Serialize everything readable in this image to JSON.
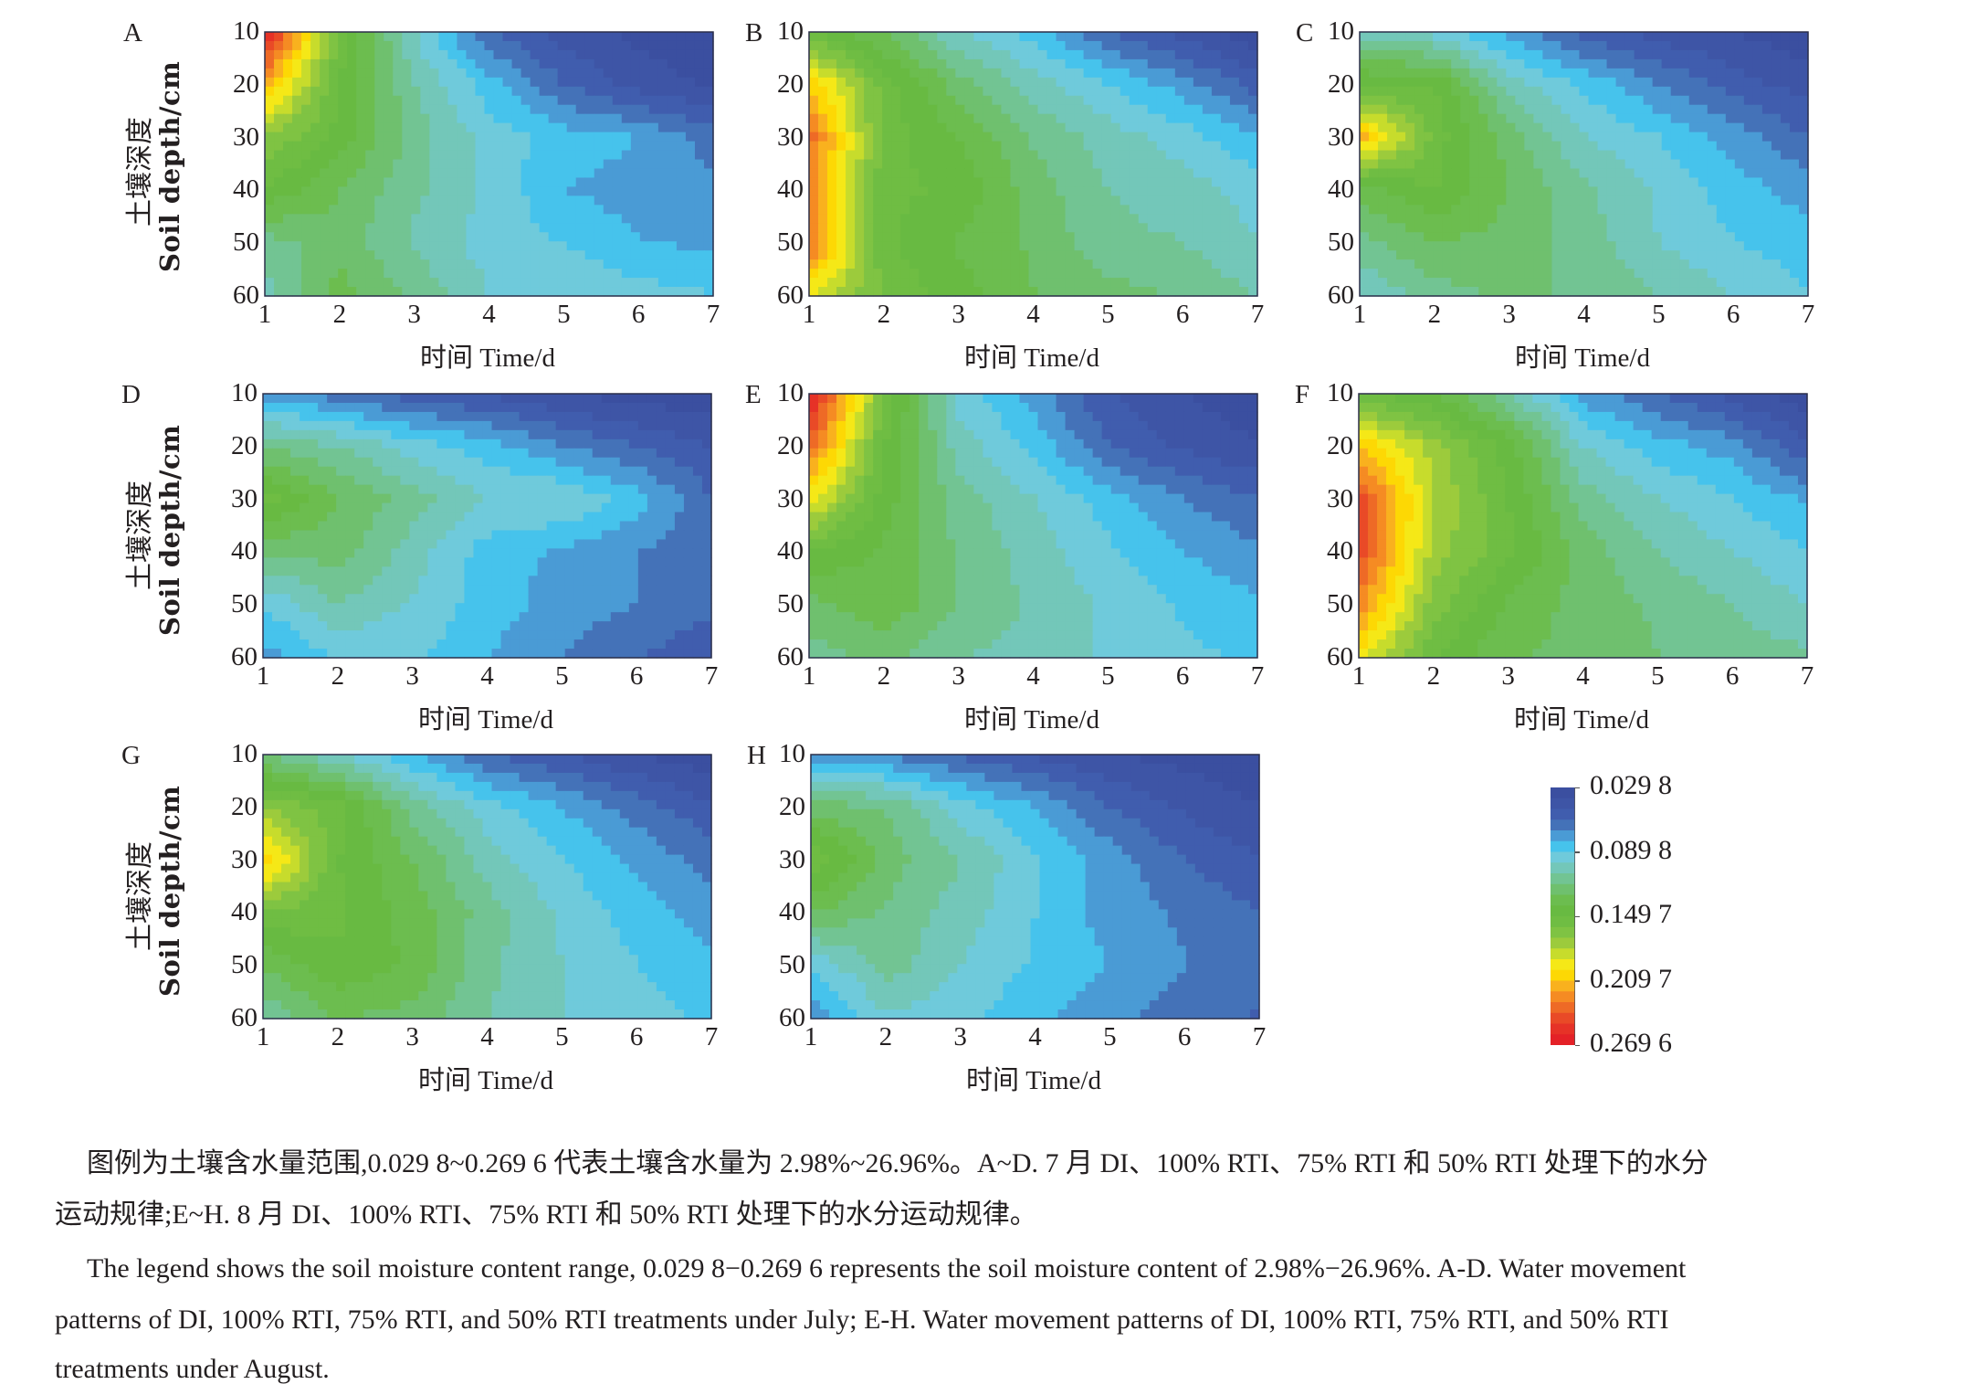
{
  "figure": {
    "y_axis_label_zh": "土壤深度",
    "y_axis_label_en": "Soil depth/cm",
    "x_axis_label": "时间 Time/d",
    "y_ticks": [
      "10",
      "20",
      "30",
      "40",
      "50",
      "60"
    ],
    "x_ticks": [
      "1",
      "2",
      "3",
      "4",
      "5",
      "6",
      "7"
    ]
  },
  "legend": {
    "ticks": [
      "0.029 8",
      "0.089 8",
      "0.149 7",
      "0.209 7",
      "0.269 6"
    ],
    "range": [
      0.0298,
      0.2696
    ],
    "band_colors": [
      "#3b4fa0",
      "#3e55a6",
      "#405dae",
      "#4472b8",
      "#4a9bd5",
      "#46c3ec",
      "#6fcadb",
      "#73c7b9",
      "#72c493",
      "#6fc06e",
      "#6cbd4f",
      "#68ba42",
      "#6fbd43",
      "#7fc343",
      "#9ccb3c",
      "#c7dc2c",
      "#f5e817",
      "#fdd804",
      "#f9b11e",
      "#f58b23",
      "#ee6a26",
      "#e94a27",
      "#e63227",
      "#e42127"
    ]
  },
  "caption": {
    "zh_line1": "图例为土壤含水量范围,0.029 8~0.269 6 代表土壤含水量为 2.98%~26.96%。A~D. 7 月 DI、100% RTI、75% RTI 和 50% RTI 处理下的水分",
    "zh_line2": "运动规律;E~H. 8 月 DI、100% RTI、75% RTI 和 50% RTI 处理下的水分运动规律。",
    "en_line1": "The legend shows the soil moisture content range, 0.029 8−0.269 6 represents the soil moisture content of 2.98%−26.96%. A-D. Water movement",
    "en_line2": "patterns of DI, 100% RTI, 75% RTI, and 50% RTI treatments under July; E-H. Water movement patterns of DI, 100% RTI, 75% RTI, and 50% RTI",
    "en_line3": "treatments under August."
  },
  "chart_data": [
    {
      "type": "heatmap",
      "label": "A",
      "xlabel": "时间 Time/d",
      "ylabel": "土壤深度 Soil depth/cm",
      "x": [
        1,
        2,
        3,
        4,
        5,
        6,
        7
      ],
      "y": [
        10,
        20,
        30,
        40,
        50,
        60
      ],
      "xlim": [
        1,
        7
      ],
      "ylim": [
        60,
        10
      ],
      "z": [
        [
          0.265,
          0.155,
          0.1,
          0.06,
          0.045,
          0.037,
          0.033
        ],
        [
          0.215,
          0.15,
          0.11,
          0.085,
          0.06,
          0.045,
          0.038
        ],
        [
          0.17,
          0.145,
          0.115,
          0.095,
          0.085,
          0.08,
          0.065
        ],
        [
          0.148,
          0.13,
          0.112,
          0.098,
          0.08,
          0.075,
          0.072
        ],
        [
          0.115,
          0.125,
          0.108,
          0.095,
          0.09,
          0.08,
          0.078
        ],
        [
          0.105,
          0.135,
          0.118,
          0.1,
          0.098,
          0.095,
          0.09
        ]
      ]
    },
    {
      "type": "heatmap",
      "label": "B",
      "xlabel": "时间 Time/d",
      "ylabel": "土壤深度 Soil depth/cm",
      "x": [
        1,
        2,
        3,
        4,
        5,
        6,
        7
      ],
      "y": [
        10,
        20,
        30,
        40,
        50,
        60
      ],
      "xlim": [
        1,
        7
      ],
      "ylim": [
        60,
        10
      ],
      "z": [
        [
          0.15,
          0.13,
          0.1,
          0.085,
          0.06,
          0.045,
          0.033
        ],
        [
          0.21,
          0.155,
          0.125,
          0.105,
          0.09,
          0.075,
          0.055
        ],
        [
          0.235,
          0.155,
          0.14,
          0.118,
          0.105,
          0.095,
          0.08
        ],
        [
          0.23,
          0.152,
          0.148,
          0.125,
          0.11,
          0.105,
          0.095
        ],
        [
          0.235,
          0.152,
          0.138,
          0.128,
          0.112,
          0.11,
          0.1
        ],
        [
          0.19,
          0.158,
          0.145,
          0.13,
          0.125,
          0.118,
          0.11
        ]
      ]
    },
    {
      "type": "heatmap",
      "label": "C",
      "xlabel": "时间 Time/d",
      "ylabel": "土壤深度 Soil depth/cm",
      "x": [
        1,
        2,
        3,
        4,
        5,
        6,
        7
      ],
      "y": [
        10,
        20,
        30,
        40,
        50,
        60
      ],
      "xlim": [
        1,
        7
      ],
      "ylim": [
        60,
        10
      ],
      "z": [
        [
          0.105,
          0.095,
          0.075,
          0.055,
          0.045,
          0.04,
          0.032
        ],
        [
          0.15,
          0.15,
          0.105,
          0.088,
          0.07,
          0.055,
          0.045
        ],
        [
          0.215,
          0.155,
          0.125,
          0.1,
          0.09,
          0.075,
          0.06
        ],
        [
          0.135,
          0.15,
          0.13,
          0.112,
          0.098,
          0.085,
          0.075
        ],
        [
          0.115,
          0.13,
          0.125,
          0.115,
          0.1,
          0.09,
          0.085
        ],
        [
          0.1,
          0.115,
          0.122,
          0.118,
          0.11,
          0.1,
          0.09
        ]
      ]
    },
    {
      "type": "heatmap",
      "label": "D",
      "xlabel": "时间 Time/d",
      "ylabel": "土壤深度 Soil depth/cm",
      "x": [
        1,
        2,
        3,
        4,
        5,
        6,
        7
      ],
      "y": [
        10,
        20,
        30,
        40,
        50,
        60
      ],
      "xlim": [
        1,
        7
      ],
      "ylim": [
        60,
        10
      ],
      "z": [
        [
          0.075,
          0.065,
          0.055,
          0.048,
          0.04,
          0.035,
          0.032
        ],
        [
          0.12,
          0.11,
          0.095,
          0.085,
          0.07,
          0.06,
          0.05
        ],
        [
          0.155,
          0.13,
          0.115,
          0.1,
          0.1,
          0.085,
          0.06
        ],
        [
          0.12,
          0.125,
          0.105,
          0.085,
          0.078,
          0.07,
          0.065
        ],
        [
          0.09,
          0.11,
          0.098,
          0.085,
          0.075,
          0.07,
          0.062
        ],
        [
          0.075,
          0.09,
          0.092,
          0.08,
          0.07,
          0.06,
          0.052
        ]
      ]
    },
    {
      "type": "heatmap",
      "label": "E",
      "xlabel": "时间 Time/d",
      "ylabel": "土壤深度 Soil depth/cm",
      "x": [
        1,
        2,
        3,
        4,
        5,
        6,
        7
      ],
      "y": [
        10,
        20,
        30,
        40,
        50,
        60
      ],
      "xlim": [
        1,
        7
      ],
      "ylim": [
        60,
        10
      ],
      "z": [
        [
          0.265,
          0.16,
          0.095,
          0.075,
          0.05,
          0.04,
          0.033
        ],
        [
          0.235,
          0.15,
          0.105,
          0.088,
          0.06,
          0.048,
          0.04
        ],
        [
          0.195,
          0.145,
          0.115,
          0.1,
          0.085,
          0.07,
          0.06
        ],
        [
          0.15,
          0.138,
          0.118,
          0.105,
          0.092,
          0.08,
          0.072
        ],
        [
          0.125,
          0.138,
          0.12,
          0.108,
          0.098,
          0.088,
          0.082
        ],
        [
          0.115,
          0.122,
          0.11,
          0.105,
          0.098,
          0.092,
          0.088
        ]
      ]
    },
    {
      "type": "heatmap",
      "label": "F",
      "xlabel": "时间 Time/d",
      "ylabel": "土壤深度 Soil depth/cm",
      "x": [
        1,
        2,
        3,
        4,
        5,
        6,
        7
      ],
      "y": [
        10,
        20,
        30,
        40,
        50,
        60
      ],
      "xlim": [
        1,
        7
      ],
      "ylim": [
        60,
        10
      ],
      "z": [
        [
          0.15,
          0.14,
          0.11,
          0.075,
          0.06,
          0.045,
          0.033
        ],
        [
          0.21,
          0.175,
          0.145,
          0.1,
          0.085,
          0.075,
          0.052
        ],
        [
          0.245,
          0.18,
          0.15,
          0.115,
          0.1,
          0.09,
          0.078
        ],
        [
          0.245,
          0.175,
          0.152,
          0.125,
          0.11,
          0.1,
          0.09
        ],
        [
          0.225,
          0.165,
          0.138,
          0.125,
          0.118,
          0.11,
          0.1
        ],
        [
          0.195,
          0.15,
          0.13,
          0.128,
          0.12,
          0.115,
          0.112
        ]
      ]
    },
    {
      "type": "heatmap",
      "label": "G",
      "xlabel": "时间 Time/d",
      "ylabel": "土壤深度 Soil depth/cm",
      "x": [
        1,
        2,
        3,
        4,
        5,
        6,
        7
      ],
      "y": [
        10,
        20,
        30,
        40,
        50,
        60
      ],
      "xlim": [
        1,
        7
      ],
      "ylim": [
        60,
        10
      ],
      "z": [
        [
          0.12,
          0.1,
          0.08,
          0.06,
          0.05,
          0.04,
          0.032
        ],
        [
          0.17,
          0.155,
          0.115,
          0.095,
          0.08,
          0.065,
          0.052
        ],
        [
          0.21,
          0.15,
          0.13,
          0.105,
          0.09,
          0.078,
          0.065
        ],
        [
          0.16,
          0.152,
          0.135,
          0.115,
          0.098,
          0.085,
          0.075
        ],
        [
          0.13,
          0.148,
          0.138,
          0.112,
          0.1,
          0.09,
          0.082
        ],
        [
          0.11,
          0.13,
          0.125,
          0.11,
          0.1,
          0.095,
          0.088
        ]
      ]
    },
    {
      "type": "heatmap",
      "label": "H",
      "xlabel": "时间 Time/d",
      "ylabel": "土壤深度 Soil depth/cm",
      "x": [
        1,
        2,
        3,
        4,
        5,
        6,
        7
      ],
      "y": [
        10,
        20,
        30,
        40,
        50,
        60
      ],
      "xlim": [
        1,
        7
      ],
      "ylim": [
        60,
        10
      ],
      "z": [
        [
          0.075,
          0.068,
          0.058,
          0.048,
          0.04,
          0.036,
          0.032
        ],
        [
          0.125,
          0.12,
          0.095,
          0.08,
          0.06,
          0.048,
          0.04
        ],
        [
          0.16,
          0.125,
          0.11,
          0.092,
          0.075,
          0.06,
          0.05
        ],
        [
          0.13,
          0.118,
          0.105,
          0.09,
          0.075,
          0.068,
          0.06
        ],
        [
          0.09,
          0.115,
          0.1,
          0.088,
          0.08,
          0.07,
          0.068
        ],
        [
          0.07,
          0.098,
          0.092,
          0.082,
          0.072,
          0.065,
          0.058
        ]
      ]
    }
  ]
}
